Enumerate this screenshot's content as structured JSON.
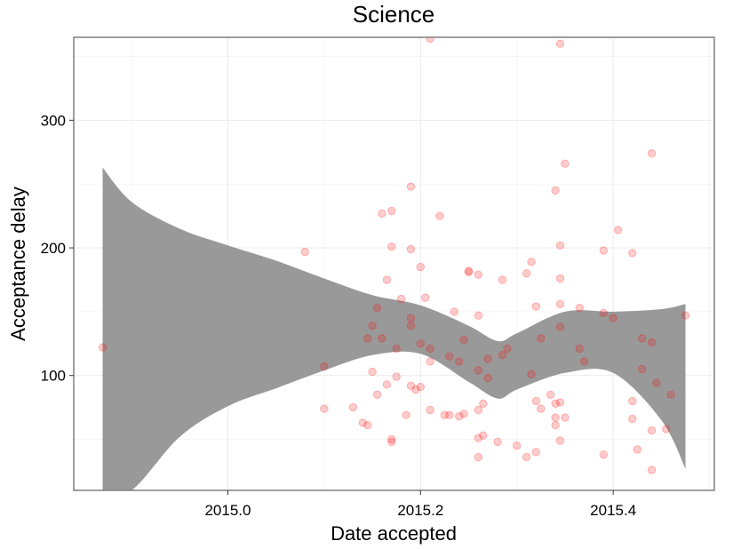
{
  "chart_data": {
    "type": "scatter",
    "title": "Science",
    "xlabel": "Date accepted",
    "ylabel": "Acceptance delay",
    "xlim": [
      2014.84,
      2015.505
    ],
    "ylim": [
      10,
      365
    ],
    "x_ticks": [
      2015.0,
      2015.2,
      2015.4
    ],
    "x_tick_labels": [
      "2015.0",
      "2015.2",
      "2015.4"
    ],
    "y_ticks": [
      100,
      200,
      300
    ],
    "y_tick_labels": [
      "100",
      "200",
      "300"
    ],
    "grid": true,
    "legend": "none",
    "colors": {
      "points": "#ff0000",
      "point_opacity": 0.2,
      "band": "#999999",
      "panel_border": "#7f7f7f",
      "grid_major": "#ebebeb",
      "grid_minor": "#f5f5f5"
    },
    "points": [
      [
        2014.87,
        122
      ],
      [
        2015.08,
        197
      ],
      [
        2015.1,
        107
      ],
      [
        2015.1,
        74
      ],
      [
        2015.13,
        75
      ],
      [
        2015.14,
        63
      ],
      [
        2015.145,
        61
      ],
      [
        2015.145,
        129
      ],
      [
        2015.15,
        139
      ],
      [
        2015.15,
        103
      ],
      [
        2015.155,
        153
      ],
      [
        2015.155,
        85
      ],
      [
        2015.16,
        227
      ],
      [
        2015.16,
        129
      ],
      [
        2015.165,
        175
      ],
      [
        2015.165,
        93
      ],
      [
        2015.17,
        229
      ],
      [
        2015.17,
        201
      ],
      [
        2015.17,
        50
      ],
      [
        2015.17,
        48
      ],
      [
        2015.175,
        99
      ],
      [
        2015.175,
        121
      ],
      [
        2015.18,
        160
      ],
      [
        2015.185,
        69
      ],
      [
        2015.19,
        145
      ],
      [
        2015.19,
        92
      ],
      [
        2015.19,
        248
      ],
      [
        2015.19,
        199
      ],
      [
        2015.19,
        139
      ],
      [
        2015.195,
        89
      ],
      [
        2015.2,
        185
      ],
      [
        2015.2,
        125
      ],
      [
        2015.2,
        91
      ],
      [
        2015.205,
        161
      ],
      [
        2015.21,
        121
      ],
      [
        2015.21,
        111
      ],
      [
        2015.21,
        73
      ],
      [
        2015.21,
        364
      ],
      [
        2015.22,
        225
      ],
      [
        2015.225,
        69
      ],
      [
        2015.23,
        115
      ],
      [
        2015.23,
        69
      ],
      [
        2015.235,
        150
      ],
      [
        2015.24,
        111
      ],
      [
        2015.24,
        68
      ],
      [
        2015.245,
        70
      ],
      [
        2015.245,
        128
      ],
      [
        2015.25,
        181
      ],
      [
        2015.25,
        182
      ],
      [
        2015.26,
        179
      ],
      [
        2015.26,
        147
      ],
      [
        2015.26,
        104
      ],
      [
        2015.26,
        73
      ],
      [
        2015.26,
        51
      ],
      [
        2015.26,
        36
      ],
      [
        2015.265,
        53
      ],
      [
        2015.265,
        78
      ],
      [
        2015.27,
        113
      ],
      [
        2015.27,
        98
      ],
      [
        2015.28,
        48
      ],
      [
        2015.285,
        175
      ],
      [
        2015.285,
        116
      ],
      [
        2015.29,
        121
      ],
      [
        2015.3,
        45
      ],
      [
        2015.31,
        36
      ],
      [
        2015.31,
        180
      ],
      [
        2015.315,
        189
      ],
      [
        2015.315,
        101
      ],
      [
        2015.32,
        80
      ],
      [
        2015.32,
        154
      ],
      [
        2015.32,
        40
      ],
      [
        2015.325,
        74
      ],
      [
        2015.325,
        129
      ],
      [
        2015.335,
        85
      ],
      [
        2015.34,
        67
      ],
      [
        2015.34,
        61
      ],
      [
        2015.34,
        78
      ],
      [
        2015.34,
        245
      ],
      [
        2015.345,
        202
      ],
      [
        2015.345,
        138
      ],
      [
        2015.345,
        49
      ],
      [
        2015.345,
        79
      ],
      [
        2015.345,
        360
      ],
      [
        2015.345,
        176
      ],
      [
        2015.345,
        156
      ],
      [
        2015.35,
        266
      ],
      [
        2015.35,
        67
      ],
      [
        2015.365,
        153
      ],
      [
        2015.365,
        121
      ],
      [
        2015.37,
        111
      ],
      [
        2015.39,
        149
      ],
      [
        2015.39,
        198
      ],
      [
        2015.39,
        38
      ],
      [
        2015.4,
        145
      ],
      [
        2015.405,
        214
      ],
      [
        2015.42,
        196
      ],
      [
        2015.42,
        80
      ],
      [
        2015.42,
        66
      ],
      [
        2015.425,
        42
      ],
      [
        2015.43,
        129
      ],
      [
        2015.43,
        105
      ],
      [
        2015.44,
        274
      ],
      [
        2015.44,
        126
      ],
      [
        2015.44,
        57
      ],
      [
        2015.44,
        26
      ],
      [
        2015.445,
        94
      ],
      [
        2015.455,
        58
      ],
      [
        2015.46,
        85
      ],
      [
        2015.475,
        147
      ]
    ],
    "smooth_band": {
      "x": [
        2014.87,
        2014.9,
        2014.95,
        2015.0,
        2015.05,
        2015.1,
        2015.15,
        2015.2,
        2015.25,
        2015.28,
        2015.3,
        2015.35,
        2015.4,
        2015.45,
        2015.475
      ],
      "upper": [
        263,
        236,
        215,
        202,
        190,
        176,
        163,
        155,
        139,
        127,
        133,
        150,
        150,
        152,
        156
      ],
      "lower": [
        10,
        10,
        52,
        76,
        90,
        104,
        116,
        117,
        95,
        82,
        89,
        102,
        102,
        65,
        27
      ]
    }
  }
}
